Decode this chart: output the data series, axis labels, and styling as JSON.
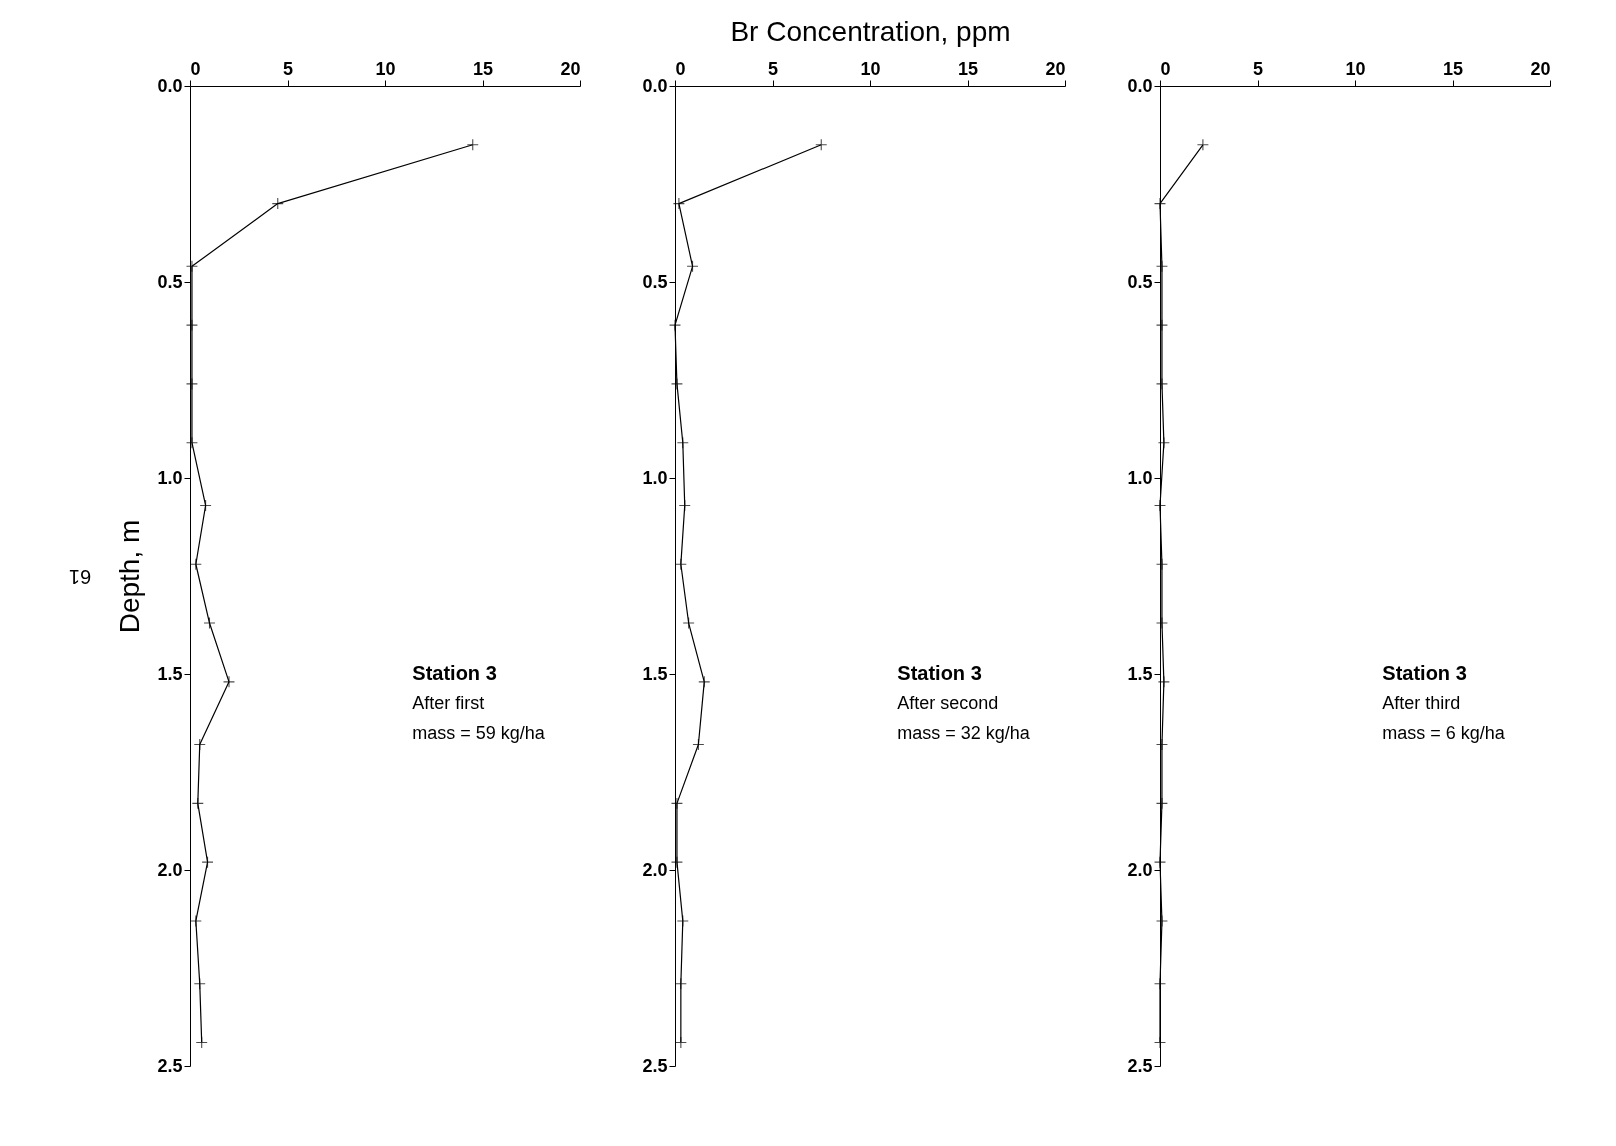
{
  "chart_data": [
    {
      "type": "line",
      "ylabel": "Depth, m",
      "annotations": [
        "61",
        "Station 3",
        "After first",
        "mass =  59 kg/ha"
      ],
      "marker": "cross",
      "line_style": "solid",
      "xlim": [
        0,
        20
      ],
      "xticks": [
        0,
        5,
        10,
        15,
        20
      ],
      "ylim": [
        2.5,
        0
      ],
      "yticks": [
        {
          "value": 0,
          "label": "0.0"
        },
        {
          "value": 0.5,
          "label": "0.5"
        },
        {
          "value": 1,
          "label": "1.0"
        },
        {
          "value": 1.5,
          "label": "1.5"
        },
        {
          "value": 2,
          "label": "2.0"
        },
        {
          "value": 2.5,
          "label": "2.5"
        }
      ],
      "series": [
        {
          "color": "#000000",
          "x": [
            14.5,
            4.5,
            0.1,
            0.1,
            0.1,
            0.1,
            0.8,
            0.3,
            1.0,
            2.0,
            0.5,
            0.4,
            0.9,
            0.3,
            0.5,
            0.6
          ],
          "values": [
            0.15,
            0.3,
            0.46,
            0.61,
            0.76,
            0.91,
            1.07,
            1.22,
            1.37,
            1.52,
            1.68,
            1.83,
            1.98,
            2.13,
            2.29,
            2.44
          ]
        }
      ]
    },
    {
      "type": "line",
      "xlabel": "Br Concentration, ppm",
      "annotations": [
        "Station 3",
        "After second",
        "mass =  32 kg/ha"
      ],
      "marker": "cross",
      "line_style": "solid",
      "xlim": [
        0,
        20
      ],
      "xticks": [
        0,
        5,
        10,
        15,
        20
      ],
      "ylim": [
        2.5,
        0
      ],
      "yticks": [
        {
          "value": 0,
          "label": "0.0"
        },
        {
          "value": 0.5,
          "label": "0.5"
        },
        {
          "value": 1,
          "label": "1.0"
        },
        {
          "value": 1.5,
          "label": "1.5"
        },
        {
          "value": 2,
          "label": "2.0"
        },
        {
          "value": 2.5,
          "label": "2.5"
        }
      ],
      "series": [
        {
          "color": "#000000",
          "x": [
            7.5,
            0.2,
            0.9,
            0.0,
            0.1,
            0.4,
            0.5,
            0.3,
            0.7,
            1.5,
            1.2,
            0.1,
            0.1,
            0.4,
            0.3,
            0.3
          ],
          "values": [
            0.15,
            0.3,
            0.46,
            0.61,
            0.76,
            0.91,
            1.07,
            1.22,
            1.37,
            1.52,
            1.68,
            1.83,
            1.98,
            2.13,
            2.29,
            2.44
          ]
        }
      ]
    },
    {
      "type": "line",
      "annotations": [
        "Station 3",
        "After third",
        "mass =   6 kg/ha"
      ],
      "marker": "cross",
      "line_style": "solid",
      "xlim": [
        0,
        20
      ],
      "xticks": [
        0,
        5,
        10,
        15,
        20
      ],
      "ylim": [
        2.5,
        0
      ],
      "yticks": [
        {
          "value": 0,
          "label": "0.0"
        },
        {
          "value": 0.5,
          "label": "0.5"
        },
        {
          "value": 1,
          "label": "1.0"
        },
        {
          "value": 1.5,
          "label": "1.5"
        },
        {
          "value": 2,
          "label": "2.0"
        },
        {
          "value": 2.5,
          "label": "2.5"
        }
      ],
      "series": [
        {
          "color": "#000000",
          "x": [
            2.2,
            0.0,
            0.1,
            0.1,
            0.1,
            0.2,
            0.0,
            0.1,
            0.1,
            0.2,
            0.1,
            0.1,
            0.0,
            0.1,
            0.0,
            0.0
          ],
          "values": [
            0.15,
            0.3,
            0.46,
            0.61,
            0.76,
            0.91,
            1.07,
            1.22,
            1.37,
            1.52,
            1.68,
            1.83,
            1.98,
            2.13,
            2.29,
            2.44
          ]
        }
      ]
    }
  ]
}
